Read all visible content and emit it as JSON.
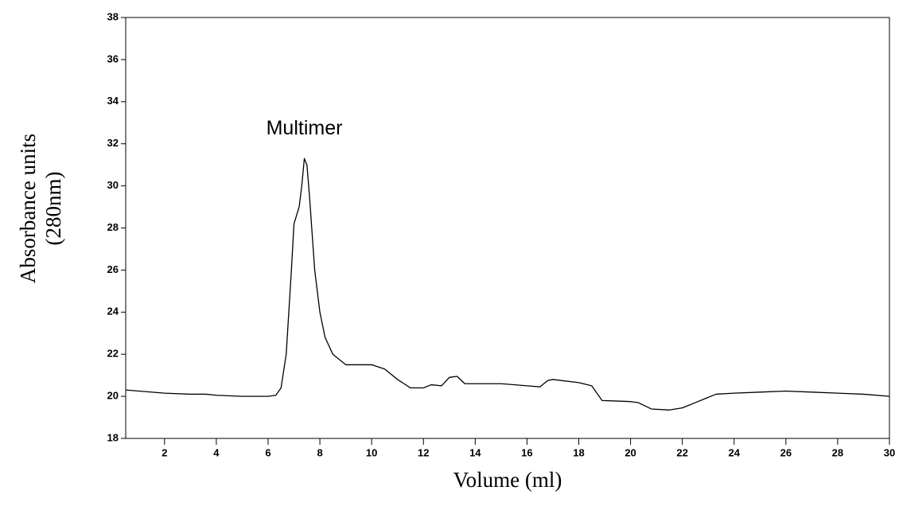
{
  "chart_data": {
    "type": "line",
    "x_label": "Volume (ml)",
    "y_label": [
      "Absorbance units",
      "(280nm)"
    ],
    "annotations": [
      {
        "text": "Multimer",
        "x": 7.4,
        "y": 32.7
      }
    ],
    "x": [
      0.5,
      1,
      2,
      3,
      3.6,
      4,
      5,
      6,
      6.3,
      6.5,
      6.7,
      6.9,
      7.0,
      7.2,
      7.3,
      7.4,
      7.5,
      7.6,
      7.8,
      8.0,
      8.2,
      8.5,
      8.8,
      9,
      10,
      10.5,
      11,
      11.5,
      12,
      12.3,
      12.7,
      13,
      13.3,
      13.6,
      14,
      15,
      16,
      16.5,
      16.8,
      17,
      18,
      18.5,
      18.9,
      20,
      20.3,
      20.8,
      21.5,
      22,
      22.5,
      23.3,
      24,
      25,
      26,
      27,
      28,
      29,
      30
    ],
    "series": [
      {
        "color": "#000000",
        "values": [
          20.3,
          20.25,
          20.15,
          20.1,
          20.1,
          20.05,
          20.0,
          20.0,
          20.05,
          20.4,
          22,
          26,
          28.2,
          29,
          30,
          31.3,
          31,
          29.5,
          26,
          24,
          22.8,
          22,
          21.7,
          21.5,
          21.5,
          21.3,
          20.8,
          20.4,
          20.4,
          20.55,
          20.5,
          20.9,
          20.95,
          20.6,
          20.6,
          20.6,
          20.5,
          20.45,
          20.75,
          20.8,
          20.65,
          20.5,
          19.8,
          19.75,
          19.7,
          19.4,
          19.35,
          19.45,
          19.7,
          20.1,
          20.15,
          20.2,
          20.25,
          20.2,
          20.15,
          20.1,
          20.0
        ]
      }
    ],
    "xlim": [
      0.5,
      30
    ],
    "xticks": [
      2,
      4,
      6,
      8,
      10,
      12,
      14,
      16,
      18,
      20,
      22,
      24,
      26,
      28,
      30
    ],
    "ylim": [
      18,
      38
    ],
    "yticks": [
      18,
      20,
      22,
      24,
      26,
      28,
      30,
      32,
      34,
      36,
      38
    ],
    "grid": false
  }
}
